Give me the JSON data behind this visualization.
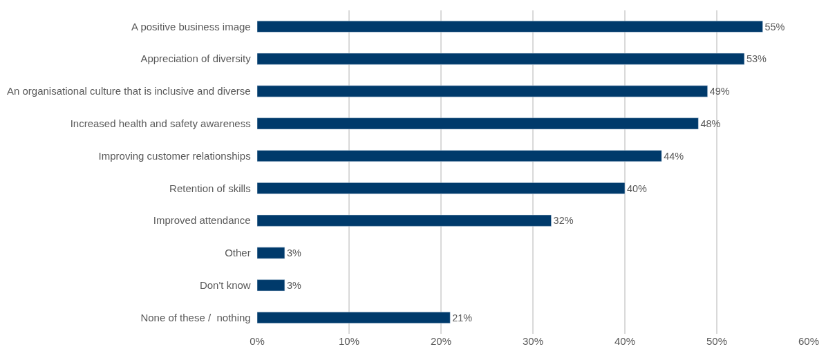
{
  "chart_data": {
    "type": "bar",
    "orientation": "horizontal",
    "categories": [
      "A positive business image",
      "Appreciation of diversity",
      "An organisational culture that is inclusive and diverse",
      "Increased health and safety awareness",
      "Improving customer relationships",
      "Retention of skills",
      "Improved attendance",
      "Other",
      "Don't know",
      "None of these /  nothing"
    ],
    "values": [
      55,
      53,
      49,
      48,
      44,
      40,
      32,
      3,
      3,
      21
    ],
    "value_labels": [
      "55%",
      "53%",
      "49%",
      "48%",
      "44%",
      "40%",
      "32%",
      "3%",
      "3%",
      "21%"
    ],
    "color": "#003a6b",
    "xlim": [
      0,
      60
    ],
    "xticks": [
      {
        "value": 0,
        "label": "0%"
      },
      {
        "value": 10,
        "label": "10%"
      },
      {
        "value": 20,
        "label": "20%"
      },
      {
        "value": 30,
        "label": "30%"
      },
      {
        "value": 40,
        "label": "40%"
      },
      {
        "value": 50,
        "label": "50%"
      },
      {
        "value": 60,
        "label": "60%"
      }
    ],
    "grid": "x",
    "legend": false
  }
}
